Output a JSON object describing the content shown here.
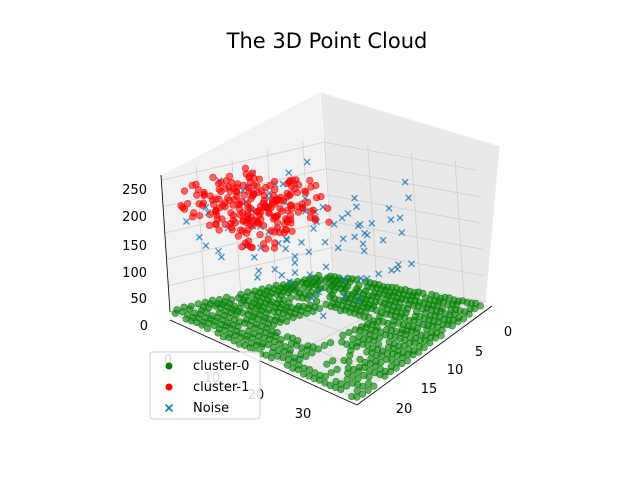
{
  "chart_data": {
    "type": "scatter",
    "title": "The 3D Point Cloud",
    "projection": "3d",
    "xlim": [
      0,
      35
    ],
    "ylim": [
      0,
      23
    ],
    "zlim": [
      0,
      260
    ],
    "x_ticks": [
      "0",
      "10",
      "20",
      "30"
    ],
    "y_ticks": [
      "0",
      "5",
      "10",
      "15",
      "20"
    ],
    "z_ticks": [
      "0",
      "50",
      "100",
      "150",
      "200",
      "250"
    ],
    "grid": true,
    "legend_position": "lower-left",
    "series": [
      {
        "name": "cluster-0",
        "marker": "circle",
        "color": "#008000",
        "description": "dense grid of points on the ground plane (z≈0), x 0-35, y 0-22, with holes",
        "x_range": [
          0,
          35
        ],
        "y_range": [
          0,
          22
        ],
        "z_range": [
          0,
          5
        ]
      },
      {
        "name": "cluster-1",
        "marker": "circle",
        "color": "#ff0000",
        "description": "cloud of points clustered at high altitude",
        "x_range": [
          2,
          18
        ],
        "y_range": [
          0,
          12
        ],
        "z_range": [
          180,
          260
        ]
      },
      {
        "name": "Noise",
        "marker": "x",
        "color": "#1f77b4",
        "description": "scattered points at mid altitude",
        "x_range": [
          0,
          35
        ],
        "y_range": [
          0,
          22
        ],
        "z_range": [
          80,
          260
        ]
      }
    ]
  }
}
